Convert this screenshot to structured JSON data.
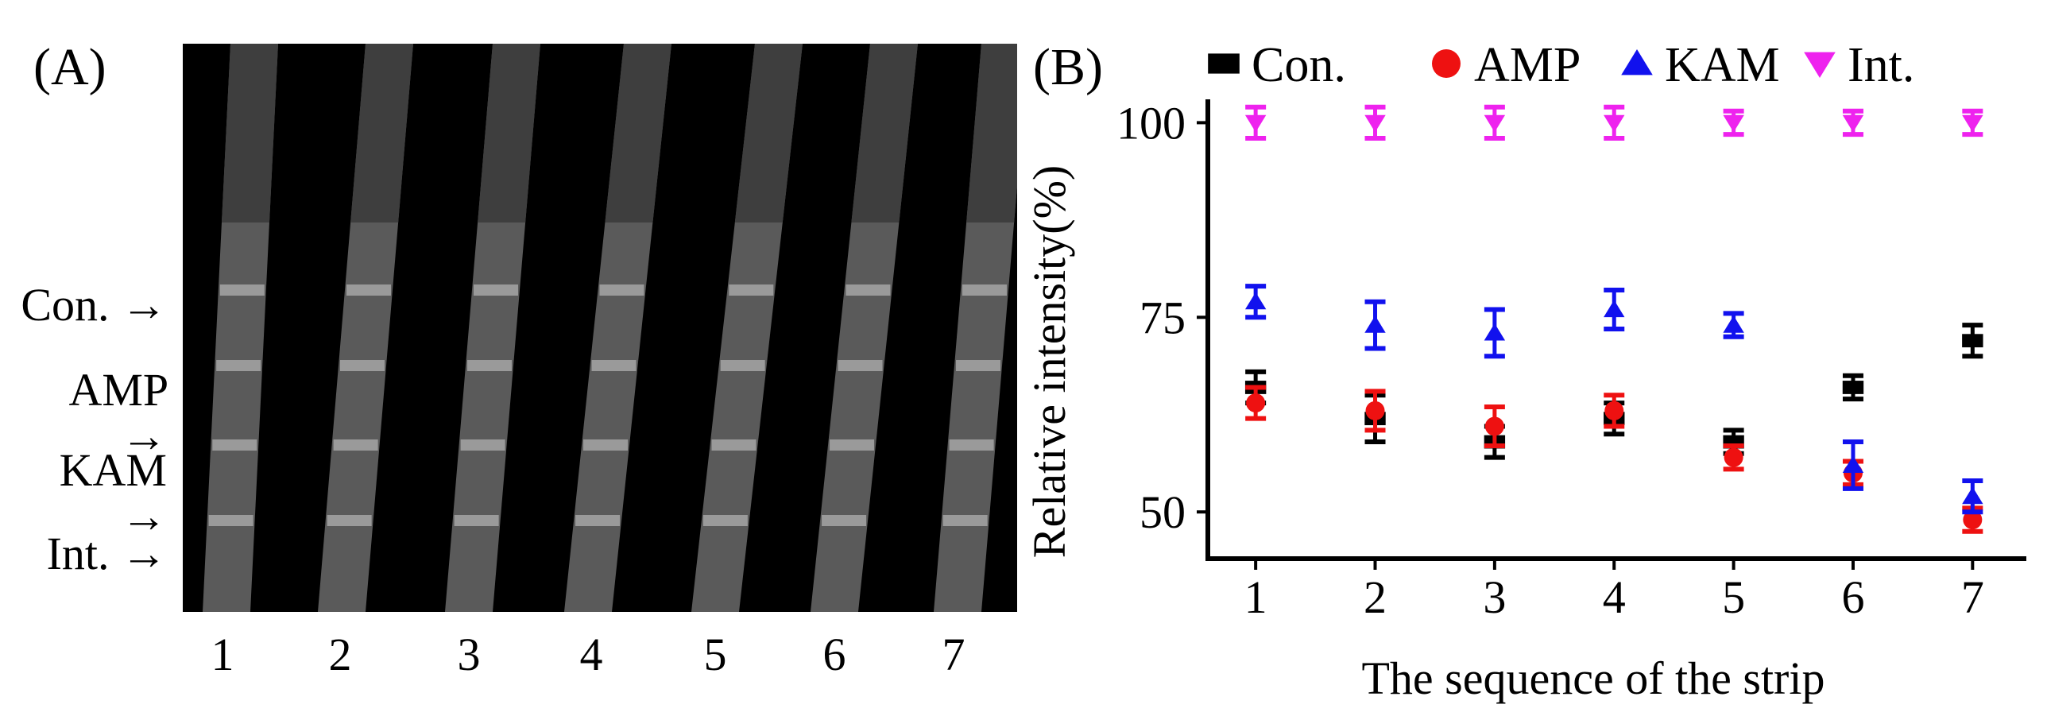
{
  "panel_a": {
    "label": "(A)",
    "band_labels": [
      "Con.",
      "AMP",
      "KAM",
      "Int."
    ],
    "lane_numbers": [
      "1",
      "2",
      "3",
      "4",
      "5",
      "6",
      "7"
    ]
  },
  "panel_b": {
    "label": "(B)"
  },
  "chart_data": {
    "type": "scatter",
    "xlabel": "The sequence of the strip",
    "ylabel": "Relative intensity(%)",
    "x": [
      1,
      2,
      3,
      4,
      5,
      6,
      7
    ],
    "xlim": [
      0.6,
      7.45
    ],
    "ylim": [
      44,
      103
    ],
    "yticks": [
      50,
      75,
      100
    ],
    "grid": false,
    "legend_position": "top",
    "series": [
      {
        "name": "Con.",
        "marker": "square",
        "color": "#000000",
        "values": [
          66,
          62,
          59,
          62,
          59,
          66,
          72
        ],
        "errors": [
          2,
          3,
          2,
          2,
          1.5,
          1.5,
          2
        ]
      },
      {
        "name": "AMP",
        "marker": "circle",
        "color": "#ee1111",
        "values": [
          64,
          63,
          61,
          63,
          57,
          55,
          49
        ],
        "errors": [
          2,
          2.5,
          2.5,
          2,
          1.5,
          1.5,
          1.5
        ]
      },
      {
        "name": "KAM",
        "marker": "triangle-up",
        "color": "#1111ee",
        "values": [
          77,
          74,
          73,
          76,
          74,
          56,
          52
        ],
        "errors": [
          2,
          3,
          3,
          2.5,
          1.5,
          3,
          2
        ]
      },
      {
        "name": "Int.",
        "marker": "triangle-down",
        "color": "#ee22ee",
        "values": [
          100,
          100,
          100,
          100,
          100,
          100,
          100
        ],
        "errors": [
          2,
          2,
          2,
          2,
          1.5,
          1.5,
          1.5
        ]
      }
    ]
  }
}
